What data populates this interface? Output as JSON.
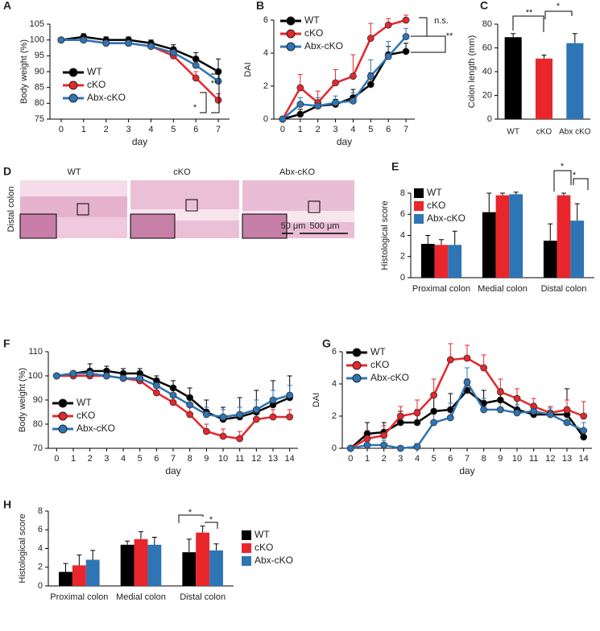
{
  "chart_data": [
    {
      "type": "line",
      "panel": "A",
      "xlabel": "day",
      "ylabel": "Body weight (%)",
      "x": [
        0,
        1,
        2,
        3,
        4,
        5,
        6,
        7
      ],
      "xlim": [
        -0.5,
        7.5
      ],
      "xticks": [
        0,
        1,
        2,
        3,
        4,
        5,
        6,
        7
      ],
      "ylim": [
        75,
        105
      ],
      "yticks": [
        75,
        80,
        85,
        90,
        95,
        100,
        105
      ],
      "series": [
        {
          "name": "WT",
          "color": "#000000",
          "values": [
            100,
            101,
            100,
            100,
            99,
            97,
            94,
            90
          ],
          "errors": [
            0.5,
            1,
            1,
            1,
            1,
            1.5,
            2,
            4
          ]
        },
        {
          "name": "cKO",
          "color": "#e8262b",
          "values": [
            100,
            100,
            99,
            99,
            98,
            95,
            88,
            81
          ],
          "errors": [
            0.5,
            1,
            1,
            1,
            1,
            1,
            2,
            2
          ]
        },
        {
          "name": "Abx-cKO",
          "color": "#2e75b6",
          "values": [
            100,
            100,
            99,
            99,
            98,
            96,
            92,
            87
          ],
          "errors": [
            0.5,
            1,
            1,
            1,
            1,
            1,
            2,
            3
          ]
        }
      ],
      "annotations": [
        "*",
        "**"
      ]
    },
    {
      "type": "line",
      "panel": "B",
      "xlabel": "day",
      "ylabel": "DAI",
      "x": [
        0,
        1,
        2,
        3,
        4,
        5,
        6,
        7
      ],
      "xlim": [
        -0.5,
        7.5
      ],
      "xticks": [
        0,
        1,
        2,
        3,
        4,
        5,
        6,
        7
      ],
      "ylim": [
        0,
        6
      ],
      "yticks": [
        0,
        2,
        4,
        6
      ],
      "series": [
        {
          "name": "WT",
          "color": "#000000",
          "values": [
            0,
            0.3,
            0.8,
            0.9,
            1.3,
            2.1,
            3.9,
            4.1
          ],
          "errors": [
            0,
            0.3,
            0.3,
            0.3,
            0.5,
            0.7,
            0.5,
            0.5
          ]
        },
        {
          "name": "cKO",
          "color": "#e8262b",
          "values": [
            0,
            1.9,
            1.0,
            2.2,
            2.6,
            4.9,
            5.7,
            6.0
          ],
          "errors": [
            0,
            0.8,
            0.7,
            0.8,
            1.3,
            0.9,
            0.4,
            0.3
          ]
        },
        {
          "name": "Abx-cKO",
          "color": "#2e75b6",
          "values": [
            0,
            0.9,
            0.8,
            1.0,
            1.1,
            2.6,
            3.8,
            5.0
          ],
          "errors": [
            0,
            0.4,
            0.5,
            0.4,
            0.5,
            1.0,
            0.9,
            0.5
          ]
        }
      ],
      "annotations": [
        "n.s.",
        "**"
      ]
    },
    {
      "type": "bar",
      "panel": "C",
      "ylabel": "Colon length (mm)",
      "categories": [
        "WT",
        "cKO",
        "Abx cKO"
      ],
      "values": [
        69,
        51,
        64
      ],
      "errors": [
        3,
        3,
        8
      ],
      "colors": [
        "#000000",
        "#e8262b",
        "#2e75b6"
      ],
      "ylim": [
        0,
        80
      ],
      "yticks": [
        0,
        20,
        40,
        60,
        80
      ],
      "annotations": [
        "**",
        "*"
      ]
    },
    {
      "type": "grouped-bar",
      "panel": "E",
      "ylabel": "Histological score",
      "categories": [
        "Proximal colon",
        "Medial colon",
        "Distal colon"
      ],
      "ylim": [
        0,
        8
      ],
      "yticks": [
        0,
        2,
        4,
        6,
        8
      ],
      "series": [
        {
          "name": "WT",
          "color": "#000000",
          "values": [
            3.2,
            6.2,
            3.5
          ],
          "errors": [
            0.8,
            1.8,
            1.6
          ]
        },
        {
          "name": "cKO",
          "color": "#e8262b",
          "values": [
            3.1,
            7.8,
            7.8
          ],
          "errors": [
            0.5,
            0.2,
            0.2
          ]
        },
        {
          "name": "Abx-cKO",
          "color": "#2e75b6",
          "values": [
            3.1,
            7.9,
            5.4
          ],
          "errors": [
            1.3,
            0.2,
            1.6
          ]
        }
      ],
      "annotations": [
        "*",
        "*"
      ]
    },
    {
      "type": "line",
      "panel": "F",
      "xlabel": "day",
      "ylabel": "Body weight (%)",
      "x": [
        0,
        1,
        2,
        3,
        4,
        5,
        6,
        7,
        8,
        9,
        10,
        11,
        12,
        13,
        14
      ],
      "xlim": [
        -0.5,
        14.5
      ],
      "xticks": [
        0,
        1,
        2,
        3,
        4,
        5,
        6,
        7,
        8,
        9,
        10,
        11,
        12,
        13,
        14
      ],
      "ylim": [
        70,
        110
      ],
      "yticks": [
        70,
        80,
        90,
        100,
        110
      ],
      "series": [
        {
          "name": "WT",
          "color": "#000000",
          "values": [
            100,
            101,
            102,
            102,
            101,
            101,
            98,
            95,
            91,
            85,
            82,
            83,
            85,
            88,
            91
          ],
          "errors": [
            0.5,
            1,
            3,
            2,
            2,
            2,
            2,
            3,
            4,
            5,
            5,
            8,
            9,
            10,
            9
          ]
        },
        {
          "name": "cKO",
          "color": "#e8262b",
          "values": [
            100,
            100,
            100,
            100,
            99,
            98,
            93,
            89,
            84,
            77,
            75,
            74,
            82,
            83,
            83
          ],
          "errors": [
            0.5,
            1,
            1,
            1,
            1,
            1,
            2,
            3,
            3,
            3,
            3,
            3,
            3,
            3,
            3
          ]
        },
        {
          "name": "Abx-cKO",
          "color": "#2e75b6",
          "values": [
            100,
            101,
            101,
            100,
            99,
            99,
            96,
            92,
            88,
            84,
            83,
            84,
            86,
            90,
            92
          ],
          "errors": [
            0.5,
            1,
            1,
            1,
            1,
            1,
            2,
            3,
            3,
            3,
            3,
            3,
            4,
            4,
            4
          ]
        }
      ]
    },
    {
      "type": "line",
      "panel": "G",
      "xlabel": "day",
      "ylabel": "DAI",
      "x": [
        0,
        1,
        2,
        3,
        4,
        5,
        6,
        7,
        8,
        9,
        10,
        11,
        12,
        13,
        14
      ],
      "xlim": [
        -0.5,
        14.5
      ],
      "xticks": [
        0,
        1,
        2,
        3,
        4,
        5,
        6,
        7,
        8,
        9,
        10,
        11,
        12,
        13,
        14
      ],
      "ylim": [
        0,
        6
      ],
      "yticks": [
        0,
        2,
        4,
        6
      ],
      "series": [
        {
          "name": "WT",
          "color": "#000000",
          "values": [
            0,
            0.9,
            1.0,
            1.6,
            1.6,
            2.3,
            2.4,
            3.6,
            2.8,
            3.0,
            2.4,
            2.1,
            2.1,
            2.1,
            0.7
          ],
          "errors": [
            0,
            0.7,
            0.6,
            0.7,
            0.8,
            1.0,
            1.0,
            0.7,
            0.8,
            0.7,
            0.6,
            0.6,
            0.5,
            1.6,
            0.4
          ]
        },
        {
          "name": "cKO",
          "color": "#e8262b",
          "values": [
            0,
            0.6,
            0.8,
            2.0,
            2.2,
            3.3,
            5.5,
            5.6,
            5.0,
            3.5,
            3.1,
            2.6,
            2.2,
            2.4,
            2.0
          ],
          "errors": [
            0,
            0.5,
            0.6,
            0.6,
            0.8,
            1.0,
            1.0,
            0.8,
            0.8,
            0.8,
            0.6,
            0.5,
            0.4,
            0.6,
            0.9
          ]
        },
        {
          "name": "Abx-cKO",
          "color": "#2e75b6",
          "values": [
            0,
            0.2,
            0.2,
            0,
            0.1,
            1.6,
            1.9,
            4.1,
            2.4,
            2.4,
            2.2,
            2.3,
            2.1,
            1.6,
            1.1
          ],
          "errors": [
            0,
            0.3,
            0.3,
            0,
            0.2,
            0.8,
            0.9,
            0.9,
            0.7,
            0.5,
            0.5,
            0.5,
            0.4,
            0.5,
            0.5
          ]
        }
      ]
    },
    {
      "type": "grouped-bar",
      "panel": "H",
      "ylabel": "Histological score",
      "categories": [
        "Proximal colon",
        "Medial colon",
        "Distal colon"
      ],
      "ylim": [
        0,
        8
      ],
      "yticks": [
        0,
        2,
        4,
        6,
        8
      ],
      "series": [
        {
          "name": "WT",
          "color": "#000000",
          "values": [
            1.5,
            4.4,
            3.6
          ],
          "errors": [
            0.9,
            0.4,
            1.4
          ]
        },
        {
          "name": "cKO",
          "color": "#e8262b",
          "values": [
            2.2,
            5.0,
            5.7
          ],
          "errors": [
            1.1,
            0.8,
            0.7
          ]
        },
        {
          "name": "Abx-cKO",
          "color": "#2e75b6",
          "values": [
            2.8,
            4.4,
            3.8
          ],
          "errors": [
            1.0,
            0.8,
            0.7
          ]
        }
      ],
      "annotations": [
        "*",
        "*"
      ]
    }
  ],
  "image_panel": {
    "panel": "D",
    "ylabel": "Distal colon",
    "titles": [
      "WT",
      "cKO",
      "Abx-cKO"
    ],
    "scale_labels": [
      "50 μm",
      "500 μm"
    ]
  }
}
